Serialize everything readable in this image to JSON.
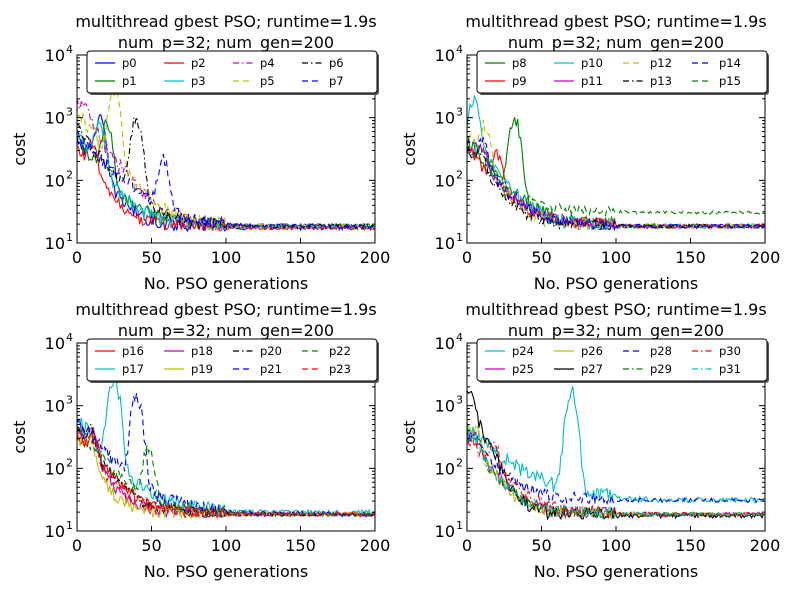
{
  "figure": {
    "background": "#ffffff"
  },
  "chart_data": [
    {
      "type": "line",
      "title": "multithread gbest PSO; runtime=1.9s",
      "subtitle": "num_p=32; num_gen=200",
      "xlabel": "No. PSO generations",
      "ylabel": "cost",
      "xlim": [
        0,
        200
      ],
      "ylim": [
        10,
        10000
      ],
      "yscale": "log",
      "x_ticks": [
        "0",
        "50",
        "100",
        "150",
        "200"
      ],
      "y_ticks": [
        {
          "base": "10",
          "exp": "1"
        },
        {
          "base": "10",
          "exp": "2"
        },
        {
          "base": "10",
          "exp": "3"
        },
        {
          "base": "10",
          "exp": "4"
        }
      ],
      "legend": {
        "placement": "top",
        "ncol": 4
      },
      "series": [
        {
          "name": "p0",
          "color": "#0000ff",
          "dash": "solid",
          "start": 450,
          "peak": 900,
          "peak_at": 15,
          "floor": 17,
          "decay": 11,
          "noise": 0.35
        },
        {
          "name": "p1",
          "color": "#008000",
          "dash": "solid",
          "start": 400,
          "peak": 700,
          "peak_at": 20,
          "floor": 18,
          "decay": 13,
          "noise": 0.35
        },
        {
          "name": "p2",
          "color": "#ff0000",
          "dash": "solid",
          "start": 300,
          "peak": 350,
          "peak_at": 10,
          "floor": 17,
          "decay": 11,
          "noise": 0.3
        },
        {
          "name": "p3",
          "color": "#00bfbf",
          "dash": "solid",
          "start": 500,
          "peak": 800,
          "peak_at": 15,
          "floor": 18,
          "decay": 12,
          "noise": 0.35
        },
        {
          "name": "p4",
          "color": "#bf00bf",
          "dash": "dashdot",
          "start": 1500,
          "peak": 1800,
          "peak_at": 5,
          "floor": 18,
          "decay": 12,
          "noise": 0.4
        },
        {
          "name": "p5",
          "color": "#bfbf00",
          "dash": "dashed",
          "start": 1200,
          "peak": 2500,
          "peak_at": 25,
          "floor": 18,
          "decay": 13,
          "noise": 0.4
        },
        {
          "name": "p6",
          "color": "#000000",
          "dash": "dashdot",
          "start": 600,
          "peak": 900,
          "peak_at": 40,
          "floor": 18,
          "decay": 14,
          "noise": 0.35
        },
        {
          "name": "p7",
          "color": "#0000ff",
          "dash": "dashed",
          "start": 500,
          "peak": 200,
          "peak_at": 58,
          "floor": 18,
          "decay": 17,
          "noise": 0.3
        }
      ]
    },
    {
      "type": "line",
      "title": "multithread gbest PSO; runtime=1.9s",
      "subtitle": "num_p=32; num_gen=200",
      "xlabel": "No. PSO generations",
      "ylabel": "cost",
      "xlim": [
        0,
        200
      ],
      "ylim": [
        10,
        10000
      ],
      "yscale": "log",
      "x_ticks": [
        "0",
        "50",
        "100",
        "150",
        "200"
      ],
      "y_ticks": [
        {
          "base": "10",
          "exp": "1"
        },
        {
          "base": "10",
          "exp": "2"
        },
        {
          "base": "10",
          "exp": "3"
        },
        {
          "base": "10",
          "exp": "4"
        }
      ],
      "legend": {
        "placement": "top",
        "ncol": 4
      },
      "series": [
        {
          "name": "p8",
          "color": "#008000",
          "dash": "solid",
          "start": 400,
          "peak": 900,
          "peak_at": 32,
          "floor": 18,
          "decay": 14,
          "noise": 0.35
        },
        {
          "name": "p9",
          "color": "#ff0000",
          "dash": "solid",
          "start": 300,
          "peak": 250,
          "peak_at": 20,
          "floor": 18,
          "decay": 13,
          "noise": 0.35
        },
        {
          "name": "p10",
          "color": "#00bfbf",
          "dash": "solid",
          "start": 600,
          "peak": 1700,
          "peak_at": 5,
          "floor": 18,
          "decay": 12,
          "noise": 0.35
        },
        {
          "name": "p11",
          "color": "#bf00bf",
          "dash": "solid",
          "start": 300,
          "peak": 300,
          "peak_at": 10,
          "floor": 18,
          "decay": 14,
          "noise": 0.3
        },
        {
          "name": "p12",
          "color": "#bfbf00",
          "dash": "dashed",
          "start": 500,
          "peak": 700,
          "peak_at": 12,
          "floor": 18,
          "decay": 11,
          "noise": 0.35
        },
        {
          "name": "p13",
          "color": "#000000",
          "dash": "dashdot",
          "start": 300,
          "peak": 300,
          "peak_at": 8,
          "floor": 18,
          "decay": 12,
          "noise": 0.3
        },
        {
          "name": "p14",
          "color": "#0000ff",
          "dash": "dashed",
          "start": 400,
          "peak": 400,
          "peak_at": 10,
          "floor": 18,
          "decay": 13,
          "noise": 0.3
        },
        {
          "name": "p15",
          "color": "#008000",
          "dash": "dashed",
          "start": 300,
          "peak": 300,
          "peak_at": 10,
          "floor": 30,
          "decay": 14,
          "noise": 0.25
        }
      ]
    },
    {
      "type": "line",
      "title": "multithread gbest PSO; runtime=1.9s",
      "subtitle": "num_p=32; num_gen=200",
      "xlabel": "No. PSO generations",
      "ylabel": "cost",
      "xlim": [
        0,
        200
      ],
      "ylim": [
        10,
        10000
      ],
      "yscale": "log",
      "x_ticks": [
        "0",
        "50",
        "100",
        "150",
        "200"
      ],
      "y_ticks": [
        {
          "base": "10",
          "exp": "1"
        },
        {
          "base": "10",
          "exp": "2"
        },
        {
          "base": "10",
          "exp": "3"
        },
        {
          "base": "10",
          "exp": "4"
        }
      ],
      "legend": {
        "placement": "top",
        "ncol": 4
      },
      "series": [
        {
          "name": "p16",
          "color": "#ff0000",
          "dash": "solid",
          "start": 400,
          "peak": 300,
          "peak_at": 10,
          "floor": 18,
          "decay": 12,
          "noise": 0.3
        },
        {
          "name": "p17",
          "color": "#00bfbf",
          "dash": "solid",
          "start": 600,
          "peak": 2500,
          "peak_at": 25,
          "floor": 19,
          "decay": 14,
          "noise": 0.4
        },
        {
          "name": "p18",
          "color": "#bf00bf",
          "dash": "solid",
          "start": 400,
          "peak": 350,
          "peak_at": 10,
          "floor": 18,
          "decay": 10,
          "noise": 0.3
        },
        {
          "name": "p19",
          "color": "#bfbf00",
          "dash": "solid",
          "start": 300,
          "peak": 300,
          "peak_at": 8,
          "floor": 18,
          "decay": 9,
          "noise": 0.3
        },
        {
          "name": "p20",
          "color": "#000000",
          "dash": "dashdot",
          "start": 400,
          "peak": 400,
          "peak_at": 8,
          "floor": 18,
          "decay": 12,
          "noise": 0.3
        },
        {
          "name": "p21",
          "color": "#0000ff",
          "dash": "dashed",
          "start": 500,
          "peak": 1400,
          "peak_at": 40,
          "floor": 18,
          "decay": 16,
          "noise": 0.4
        },
        {
          "name": "p22",
          "color": "#008000",
          "dash": "dashed",
          "start": 400,
          "peak": 200,
          "peak_at": 48,
          "floor": 18,
          "decay": 14,
          "noise": 0.35
        },
        {
          "name": "p23",
          "color": "#ff0000",
          "dash": "dashed",
          "start": 300,
          "peak": 300,
          "peak_at": 10,
          "floor": 18,
          "decay": 12,
          "noise": 0.3
        }
      ]
    },
    {
      "type": "line",
      "title": "multithread gbest PSO; runtime=1.9s",
      "subtitle": "num_p=32; num_gen=200",
      "xlabel": "No. PSO generations",
      "ylabel": "cost",
      "xlim": [
        0,
        200
      ],
      "ylim": [
        10,
        10000
      ],
      "yscale": "log",
      "x_ticks": [
        "0",
        "50",
        "100",
        "150",
        "200"
      ],
      "y_ticks": [
        {
          "base": "10",
          "exp": "1"
        },
        {
          "base": "10",
          "exp": "2"
        },
        {
          "base": "10",
          "exp": "3"
        },
        {
          "base": "10",
          "exp": "4"
        }
      ],
      "legend": {
        "placement": "top",
        "ncol": 4
      },
      "series": [
        {
          "name": "p24",
          "color": "#00bfbf",
          "dash": "solid",
          "start": 400,
          "peak": 1600,
          "peak_at": 70,
          "floor": 30,
          "decay": 20,
          "noise": 0.4
        },
        {
          "name": "p25",
          "color": "#bf00bf",
          "dash": "solid",
          "start": 300,
          "peak": 300,
          "peak_at": 5,
          "floor": 18,
          "decay": 12,
          "noise": 0.3
        },
        {
          "name": "p26",
          "color": "#bfbf00",
          "dash": "solid",
          "start": 400,
          "peak": 400,
          "peak_at": 5,
          "floor": 18,
          "decay": 10,
          "noise": 0.3
        },
        {
          "name": "p27",
          "color": "#000000",
          "dash": "solid",
          "start": 1300,
          "peak": 1300,
          "peak_at": 1,
          "floor": 17,
          "decay": 8,
          "noise": 0.35
        },
        {
          "name": "p28",
          "color": "#0000ff",
          "dash": "dashed",
          "start": 300,
          "peak": 300,
          "peak_at": 5,
          "floor": 30,
          "decay": 14,
          "noise": 0.3
        },
        {
          "name": "p29",
          "color": "#008000",
          "dash": "dashdot",
          "start": 300,
          "peak": 300,
          "peak_at": 5,
          "floor": 18,
          "decay": 12,
          "noise": 0.3
        },
        {
          "name": "p30",
          "color": "#ff0000",
          "dash": "dashdot",
          "start": 300,
          "peak": 250,
          "peak_at": 18,
          "floor": 18,
          "decay": 14,
          "noise": 0.3
        },
        {
          "name": "p31",
          "color": "#00bfbf",
          "dash": "dashdot",
          "start": 300,
          "peak": 300,
          "peak_at": 5,
          "floor": 18,
          "decay": 12,
          "noise": 0.3
        }
      ]
    }
  ]
}
